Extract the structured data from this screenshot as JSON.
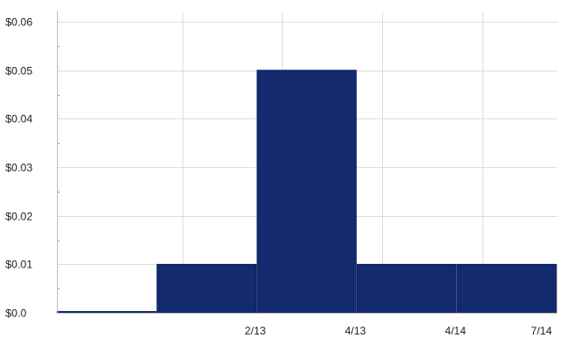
{
  "chart_data": {
    "type": "bar",
    "categories": [
      "",
      "2/13",
      "4/13",
      "4/14",
      "7/14"
    ],
    "values": [
      0.0,
      0.01,
      0.05,
      0.01,
      0.01
    ],
    "title": "",
    "xlabel": "",
    "ylabel": "",
    "ylim": [
      0,
      0.06
    ],
    "y_ticks": [
      "$0.0",
      "$0.01",
      "$0.02",
      "$0.03",
      "$0.04",
      "$0.05",
      "$0.06"
    ],
    "grid": true,
    "bar_color": "#132a6e"
  }
}
